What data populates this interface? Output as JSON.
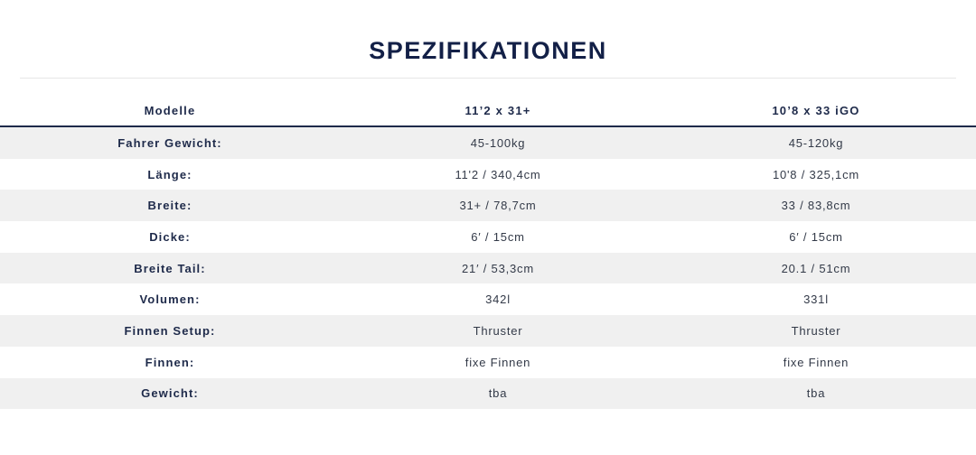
{
  "page": {
    "title": "SPEZIFIKATIONEN"
  },
  "table": {
    "headers": [
      "Modelle",
      "11’2 x 31+",
      "10’8 x 33 iGO"
    ],
    "rows": [
      {
        "label": "Fahrer Gewicht:",
        "values": [
          "45-100kg",
          "45-120kg"
        ]
      },
      {
        "label": "Länge:",
        "values": [
          "11'2 / 340,4cm",
          "10'8 / 325,1cm"
        ]
      },
      {
        "label": "Breite:",
        "values": [
          "31+ / 78,7cm",
          "33 / 83,8cm"
        ]
      },
      {
        "label": "Dicke:",
        "values": [
          "6′ / 15cm",
          "6′ / 15cm"
        ]
      },
      {
        "label": "Breite Tail:",
        "values": [
          "21′ / 53,3cm",
          "20.1 / 51cm"
        ]
      },
      {
        "label": "Volumen:",
        "values": [
          "342l",
          "331l"
        ]
      },
      {
        "label": "Finnen Setup:",
        "values": [
          "Thruster",
          "Thruster"
        ]
      },
      {
        "label": "Finnen:",
        "values": [
          "fixe Finnen",
          "fixe Finnen"
        ]
      },
      {
        "label": "Gewicht:",
        "values": [
          "tba",
          "tba"
        ]
      }
    ]
  },
  "colors": {
    "heading": "#132047",
    "header_rule": "#1e2a4a",
    "stripe": "#f0f0f0"
  }
}
